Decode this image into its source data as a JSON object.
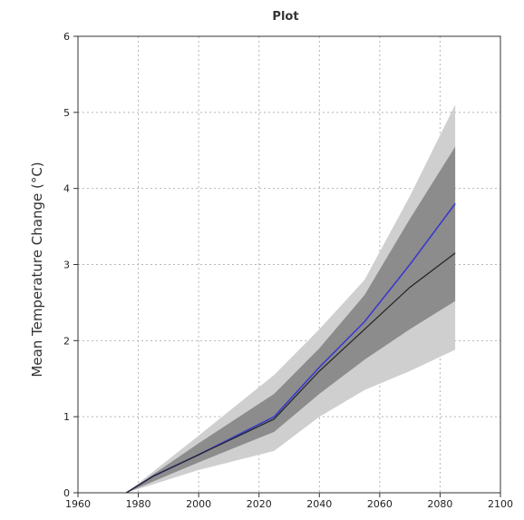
{
  "chart_data": {
    "type": "line",
    "title": "Plot",
    "xlabel": "",
    "ylabel": "Mean Temperature Change (°C)",
    "xlim": [
      1960,
      2100
    ],
    "ylim": [
      0,
      6
    ],
    "x_ticks": [
      1960,
      1980,
      2000,
      2020,
      2040,
      2060,
      2080,
      2100
    ],
    "x_tick_labels": [
      "1960",
      "1980",
      "2000",
      "2020",
      "2040",
      "2060",
      "2080",
      "2100"
    ],
    "y_ticks": [
      0,
      1,
      2,
      3,
      4,
      5,
      6
    ],
    "y_tick_labels": [
      "0",
      "1",
      "2",
      "3",
      "4",
      "5",
      "6"
    ],
    "grid": true,
    "legend": "none",
    "series": [
      {
        "x": [
          1976,
          1985,
          2000,
          2015,
          2025,
          2040,
          2055,
          2070,
          2085
        ],
        "values": [
          0,
          0.22,
          0.5,
          0.8,
          1.0,
          1.65,
          2.25,
          3.0,
          3.8
        ],
        "color": "#3a3acc"
      },
      {
        "x": [
          1976,
          1985,
          2000,
          2015,
          2025,
          2040,
          2055,
          2070,
          2085
        ],
        "values": [
          0,
          0.22,
          0.5,
          0.78,
          0.97,
          1.6,
          2.15,
          2.7,
          3.15
        ],
        "color": "#222222"
      }
    ],
    "bands": [
      {
        "x": [
          1976,
          2000,
          2025,
          2040,
          2055,
          2070,
          2085
        ],
        "lower": [
          0,
          0.3,
          0.55,
          1.0,
          1.35,
          1.6,
          1.88
        ],
        "upper": [
          0,
          0.75,
          1.55,
          2.15,
          2.8,
          3.9,
          5.1
        ],
        "color": "#cfcfcf"
      },
      {
        "x": [
          1976,
          2000,
          2025,
          2040,
          2055,
          2070,
          2085
        ],
        "lower": [
          0,
          0.4,
          0.8,
          1.3,
          1.75,
          2.15,
          2.52
        ],
        "upper": [
          0,
          0.65,
          1.3,
          1.9,
          2.6,
          3.6,
          4.55
        ],
        "color": "#8c8c8c"
      }
    ]
  }
}
